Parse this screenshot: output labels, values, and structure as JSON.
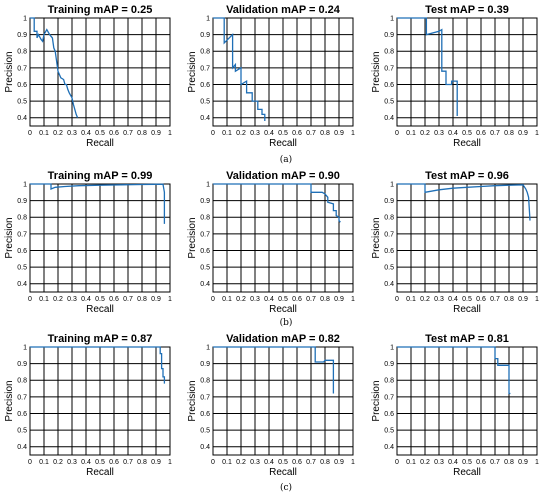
{
  "chart_data": [
    {
      "type": "line",
      "title": "Training mAP = 0.25",
      "xlabel": "Recall",
      "ylabel": "Precision",
      "xlim": [
        0,
        1
      ],
      "ylim": [
        0.35,
        1
      ],
      "grid": true,
      "x_ticks": [
        "0",
        "0.1",
        "0.2",
        "0.3",
        "0.4",
        "0.5",
        "0.6",
        "0.7",
        "0.8",
        "0.9",
        "1"
      ],
      "y_ticks": [
        "0.4",
        "0.5",
        "0.6",
        "0.7",
        "0.8",
        "0.9",
        "1"
      ],
      "series": [
        {
          "x": [
            0,
            0.03,
            0.03,
            0.05,
            0.05,
            0.06,
            0.08,
            0.09,
            0.1,
            0.12,
            0.14,
            0.16,
            0.17,
            0.18,
            0.19,
            0.2,
            0.21,
            0.22,
            0.24,
            0.25,
            0.26,
            0.27,
            0.28,
            0.3,
            0.31,
            0.32,
            0.33,
            0.34
          ],
          "y": [
            1,
            1,
            0.92,
            0.92,
            0.88,
            0.9,
            0.87,
            0.86,
            0.9,
            0.93,
            0.9,
            0.88,
            0.82,
            0.8,
            0.74,
            0.68,
            0.66,
            0.64,
            0.63,
            0.6,
            0.6,
            0.57,
            0.55,
            0.52,
            0.48,
            0.45,
            0.42,
            0.4
          ]
        }
      ]
    },
    {
      "type": "line",
      "title": "Validation mAP = 0.24",
      "xlabel": "Recall",
      "ylabel": "Precision",
      "xlim": [
        0,
        1
      ],
      "ylim": [
        0.35,
        1
      ],
      "grid": true,
      "x_ticks": [
        "0",
        "0.1",
        "0.2",
        "0.3",
        "0.4",
        "0.5",
        "0.6",
        "0.7",
        "0.8",
        "0.9",
        "1"
      ],
      "y_ticks": [
        "0.4",
        "0.5",
        "0.6",
        "0.7",
        "0.8",
        "0.9",
        "1"
      ],
      "series": [
        {
          "x": [
            0,
            0.08,
            0.08,
            0.14,
            0.14,
            0.16,
            0.16,
            0.2,
            0.2,
            0.24,
            0.24,
            0.28,
            0.28,
            0.32,
            0.32,
            0.35,
            0.35,
            0.37,
            0.37
          ],
          "y": [
            1,
            1,
            0.85,
            0.9,
            0.7,
            0.72,
            0.68,
            0.7,
            0.6,
            0.62,
            0.55,
            0.55,
            0.5,
            0.5,
            0.45,
            0.45,
            0.42,
            0.42,
            0.38
          ]
        }
      ]
    },
    {
      "type": "line",
      "title": "Test mAP = 0.39",
      "xlabel": "Recall",
      "ylabel": "Precision",
      "xlim": [
        0,
        1
      ],
      "ylim": [
        0.35,
        1
      ],
      "grid": true,
      "x_ticks": [
        "0",
        "0.1",
        "0.2",
        "0.3",
        "0.4",
        "0.5",
        "0.6",
        "0.7",
        "0.8",
        "0.9",
        "1"
      ],
      "y_ticks": [
        "0.4",
        "0.5",
        "0.6",
        "0.7",
        "0.8",
        "0.9",
        "1"
      ],
      "series": [
        {
          "x": [
            0,
            0.21,
            0.21,
            0.3,
            0.32,
            0.32,
            0.35,
            0.35,
            0.39,
            0.39,
            0.43,
            0.43
          ],
          "y": [
            1,
            1,
            0.9,
            0.92,
            0.93,
            0.68,
            0.68,
            0.6,
            0.6,
            0.62,
            0.62,
            0.41
          ]
        }
      ]
    },
    {
      "type": "line",
      "title": "Training mAP = 0.99",
      "xlabel": "Recall",
      "ylabel": "Precision",
      "xlim": [
        0,
        1
      ],
      "ylim": [
        0.35,
        1
      ],
      "grid": true,
      "x_ticks": [
        "0",
        "0.1",
        "0.2",
        "0.3",
        "0.4",
        "0.5",
        "0.6",
        "0.7",
        "0.8",
        "0.9",
        "1"
      ],
      "y_ticks": [
        "0.4",
        "0.5",
        "0.6",
        "0.7",
        "0.8",
        "0.9",
        "1"
      ],
      "series": [
        {
          "x": [
            0,
            0.15,
            0.15,
            0.18,
            0.25,
            0.35,
            0.5,
            0.65,
            0.8,
            0.9,
            0.95,
            0.96,
            0.96
          ],
          "y": [
            1,
            1,
            0.97,
            0.98,
            0.985,
            0.99,
            0.993,
            0.995,
            0.997,
            0.998,
            0.998,
            0.95,
            0.76
          ]
        }
      ]
    },
    {
      "type": "line",
      "title": "Validation mAP = 0.90",
      "xlabel": "Recall",
      "ylabel": "Precision",
      "xlim": [
        0,
        1
      ],
      "ylim": [
        0.35,
        1
      ],
      "grid": true,
      "x_ticks": [
        "0",
        "0.1",
        "0.2",
        "0.3",
        "0.4",
        "0.5",
        "0.6",
        "0.7",
        "0.8",
        "0.9",
        "1"
      ],
      "y_ticks": [
        "0.4",
        "0.5",
        "0.6",
        "0.7",
        "0.8",
        "0.9",
        "1"
      ],
      "series": [
        {
          "x": [
            0,
            0.7,
            0.7,
            0.78,
            0.8,
            0.82,
            0.82,
            0.86,
            0.86,
            0.88,
            0.88,
            0.9,
            0.9,
            0.91
          ],
          "y": [
            1,
            1,
            0.95,
            0.95,
            0.94,
            0.92,
            0.89,
            0.88,
            0.84,
            0.84,
            0.81,
            0.8,
            0.78,
            0.77
          ]
        }
      ]
    },
    {
      "type": "line",
      "title": "Test mAP = 0.96",
      "xlabel": "Recall",
      "ylabel": "Precision",
      "xlim": [
        0,
        1
      ],
      "ylim": [
        0.35,
        1
      ],
      "grid": true,
      "x_ticks": [
        "0",
        "0.1",
        "0.2",
        "0.3",
        "0.4",
        "0.5",
        "0.6",
        "0.7",
        "0.8",
        "0.9",
        "1"
      ],
      "y_ticks": [
        "0.4",
        "0.5",
        "0.6",
        "0.7",
        "0.8",
        "0.9",
        "1"
      ],
      "series": [
        {
          "x": [
            0,
            0.2,
            0.2,
            0.3,
            0.4,
            0.5,
            0.6,
            0.7,
            0.8,
            0.9,
            0.92,
            0.93,
            0.94,
            0.95
          ],
          "y": [
            1,
            1,
            0.95,
            0.965,
            0.975,
            0.98,
            0.985,
            0.99,
            0.993,
            0.995,
            0.97,
            0.95,
            0.92,
            0.78
          ]
        }
      ]
    },
    {
      "type": "line",
      "title": "Training mAP = 0.87",
      "xlabel": "Recall",
      "ylabel": "Precision",
      "xlim": [
        0,
        1
      ],
      "ylim": [
        0.35,
        1
      ],
      "grid": true,
      "x_ticks": [
        "0",
        "0.1",
        "0.2",
        "0.3",
        "0.4",
        "0.5",
        "0.6",
        "0.7",
        "0.8",
        "0.9",
        "1"
      ],
      "y_ticks": [
        "0.4",
        "0.5",
        "0.6",
        "0.7",
        "0.8",
        "0.9",
        "1"
      ],
      "series": [
        {
          "x": [
            0,
            0.93,
            0.93,
            0.94,
            0.94,
            0.95,
            0.95,
            0.96,
            0.96
          ],
          "y": [
            1,
            1,
            0.96,
            0.96,
            0.87,
            0.87,
            0.82,
            0.82,
            0.78
          ]
        }
      ]
    },
    {
      "type": "line",
      "title": "Validation mAP = 0.82",
      "xlabel": "Recall",
      "ylabel": "Precision",
      "xlim": [
        0,
        1
      ],
      "ylim": [
        0.35,
        1
      ],
      "grid": true,
      "x_ticks": [
        "0",
        "0.1",
        "0.2",
        "0.3",
        "0.4",
        "0.5",
        "0.6",
        "0.7",
        "0.8",
        "0.9",
        "1"
      ],
      "y_ticks": [
        "0.4",
        "0.5",
        "0.6",
        "0.7",
        "0.8",
        "0.9",
        "1"
      ],
      "series": [
        {
          "x": [
            0,
            0.73,
            0.73,
            0.79,
            0.8,
            0.86,
            0.86
          ],
          "y": [
            1,
            1,
            0.91,
            0.91,
            0.92,
            0.92,
            0.72
          ]
        }
      ]
    },
    {
      "type": "line",
      "title": "Test mAP = 0.81",
      "xlabel": "Recall",
      "ylabel": "Precision",
      "xlim": [
        0,
        1
      ],
      "ylim": [
        0.35,
        1
      ],
      "grid": true,
      "x_ticks": [
        "0",
        "0.1",
        "0.2",
        "0.3",
        "0.4",
        "0.5",
        "0.6",
        "0.7",
        "0.8",
        "0.9",
        "1"
      ],
      "y_ticks": [
        "0.4",
        "0.5",
        "0.6",
        "0.7",
        "0.8",
        "0.9",
        "1"
      ],
      "series": [
        {
          "x": [
            0,
            0.7,
            0.7,
            0.72,
            0.72,
            0.8,
            0.8,
            0.81
          ],
          "y": [
            1,
            1,
            0.93,
            0.93,
            0.89,
            0.89,
            0.72,
            0.72
          ]
        }
      ]
    }
  ],
  "captions": [
    "(a)",
    "(b)",
    "(c)"
  ],
  "colors": {
    "curve": "#1f6fb6",
    "grid": "#000000",
    "background": "#ffffff"
  }
}
